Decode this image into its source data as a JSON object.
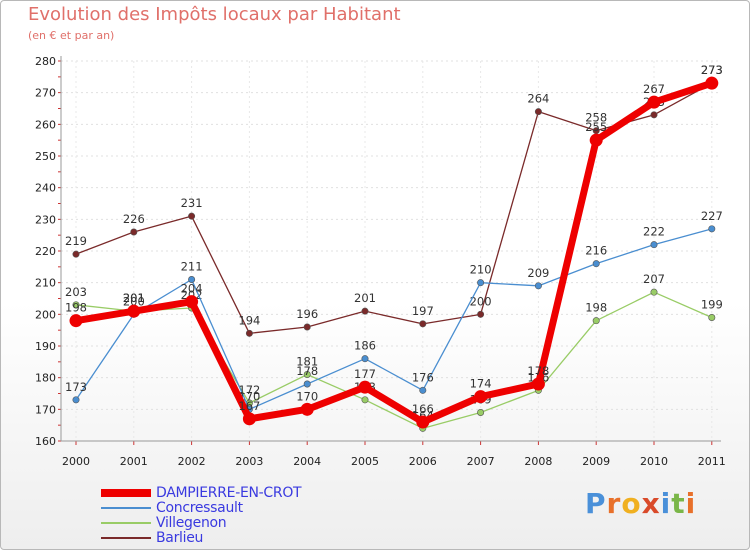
{
  "title": "Evolution des Impôts locaux par Habitant",
  "subtitle": "(en € et par an)",
  "logo": {
    "letters": [
      "P",
      "r",
      "o",
      "x",
      "i",
      "t",
      "i"
    ],
    "colors": [
      "#4a90d9",
      "#e8702a",
      "#f0b020",
      "#d94a2a",
      "#4a90d9",
      "#7ab648",
      "#e8702a"
    ]
  },
  "chart_data": {
    "type": "line",
    "title": "Evolution des Impôts locaux par Habitant",
    "subtitle": "(en € et par an)",
    "xlabel": "",
    "ylabel": "",
    "x": [
      "2000",
      "2001",
      "2002",
      "2003",
      "2004",
      "2005",
      "2006",
      "2007",
      "2008",
      "2009",
      "2010",
      "2011"
    ],
    "ylim": [
      160,
      280
    ],
    "yticks": [
      160,
      170,
      180,
      190,
      200,
      210,
      220,
      230,
      240,
      250,
      260,
      270,
      280
    ],
    "grid": true,
    "legend_position": "bottom-left",
    "series": [
      {
        "name": "Barlieu",
        "color": "#7a2a2a",
        "values": [
          219,
          226,
          231,
          194,
          196,
          201,
          197,
          200,
          264,
          258,
          263,
          273
        ],
        "bold": false
      },
      {
        "name": "Villegenon",
        "color": "#99cc66",
        "values": [
          203,
          201,
          202,
          172,
          181,
          173,
          164,
          169,
          176,
          198,
          207,
          199
        ],
        "bold": false
      },
      {
        "name": "Concressault",
        "color": "#4a8ed0",
        "values": [
          173,
          200,
          211,
          170,
          178,
          186,
          176,
          210,
          209,
          216,
          222,
          227
        ],
        "bold": false
      },
      {
        "name": "DAMPIERRE-EN-CROT",
        "color": "#ee0000",
        "values": [
          198,
          201,
          204,
          167,
          170,
          177,
          166,
          174,
          178,
          255,
          267,
          273
        ],
        "bold": true
      }
    ],
    "legend_order": [
      "DAMPIERRE-EN-CROT",
      "Concressault",
      "Villegenon",
      "Barlieu"
    ]
  }
}
